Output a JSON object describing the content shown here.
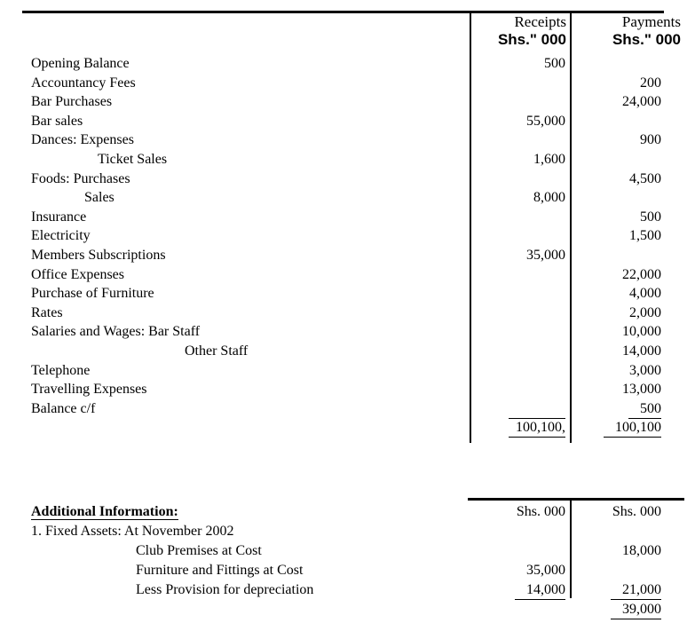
{
  "document": {
    "background": "#ffffff",
    "text_color": "#000000"
  },
  "ledger": {
    "columns": [
      {
        "title": "Receipts",
        "unit": "Shs.\" 000"
      },
      {
        "title": "Payments",
        "unit": "Shs.\" 000"
      }
    ],
    "rows": [
      {
        "label": "Opening Balance",
        "indent": 0,
        "receipts": "500",
        "payments": ""
      },
      {
        "label": "Accountancy Fees",
        "indent": 0,
        "receipts": "",
        "payments": "200"
      },
      {
        "label": "Bar Purchases",
        "indent": 0,
        "receipts": "",
        "payments": "24,000"
      },
      {
        "label": "Bar sales",
        "indent": 0,
        "receipts": "55,000",
        "payments": ""
      },
      {
        "label": "Dances: Expenses",
        "indent": 0,
        "receipts": "",
        "payments": "900"
      },
      {
        "label": "Ticket Sales",
        "indent": 75,
        "receipts": "1,600",
        "payments": ""
      },
      {
        "label": "Foods: Purchases",
        "indent": 0,
        "receipts": "",
        "payments": "4,500"
      },
      {
        "label": "Sales",
        "indent": 60,
        "receipts": "8,000",
        "payments": ""
      },
      {
        "label": "Insurance",
        "indent": 0,
        "receipts": "",
        "payments": "500"
      },
      {
        "label": "Electricity",
        "indent": 0,
        "receipts": "",
        "payments": "1,500"
      },
      {
        "label": "Members Subscriptions",
        "indent": 0,
        "receipts": "35,000",
        "payments": ""
      },
      {
        "label": "Office Expenses",
        "indent": 0,
        "receipts": "",
        "payments": "22,000"
      },
      {
        "label": "Purchase of Furniture",
        "indent": 0,
        "receipts": "",
        "payments": "4,000"
      },
      {
        "label": "Rates",
        "indent": 0,
        "receipts": "",
        "payments": "2,000"
      },
      {
        "label": "Salaries and Wages: Bar Staff",
        "indent": 0,
        "receipts": "",
        "payments": "10,000"
      },
      {
        "label": "Other Staff",
        "indent": 173,
        "receipts": "",
        "payments": "14,000"
      },
      {
        "label": "Telephone",
        "indent": 0,
        "receipts": "",
        "payments": "3,000"
      },
      {
        "label": "Travelling Expenses",
        "indent": 0,
        "receipts": "",
        "payments": "13,000"
      },
      {
        "label": "Balance c/f",
        "indent": 0,
        "receipts": "",
        "payments": "500",
        "p_class": "u"
      },
      {
        "label": "",
        "indent": 0,
        "receipts": "100,100,",
        "payments": "100,100",
        "r_class": "tu",
        "p_class": "u"
      }
    ]
  },
  "additional": {
    "heading": "Additional Information:",
    "col_units": [
      "Shs. 000",
      "Shs. 000"
    ],
    "rows": [
      {
        "label": "1. Fixed Assets: At November 2002",
        "indent": 0,
        "c1": "",
        "c2": ""
      },
      {
        "label": "Club Premises at Cost",
        "indent": 118,
        "c1": "",
        "c2": "18,000"
      },
      {
        "label": "Furniture and Fittings at Cost",
        "indent": 118,
        "c1": "35,000",
        "c2": ""
      },
      {
        "label": "Less Provision for depreciation",
        "indent": 118,
        "c1": "14,000",
        "c1_class": "u",
        "c2": "21,000",
        "c2_class": "u"
      },
      {
        "label": "",
        "indent": 0,
        "c1": "",
        "c2": "39,000",
        "c2_class": "u"
      }
    ]
  }
}
